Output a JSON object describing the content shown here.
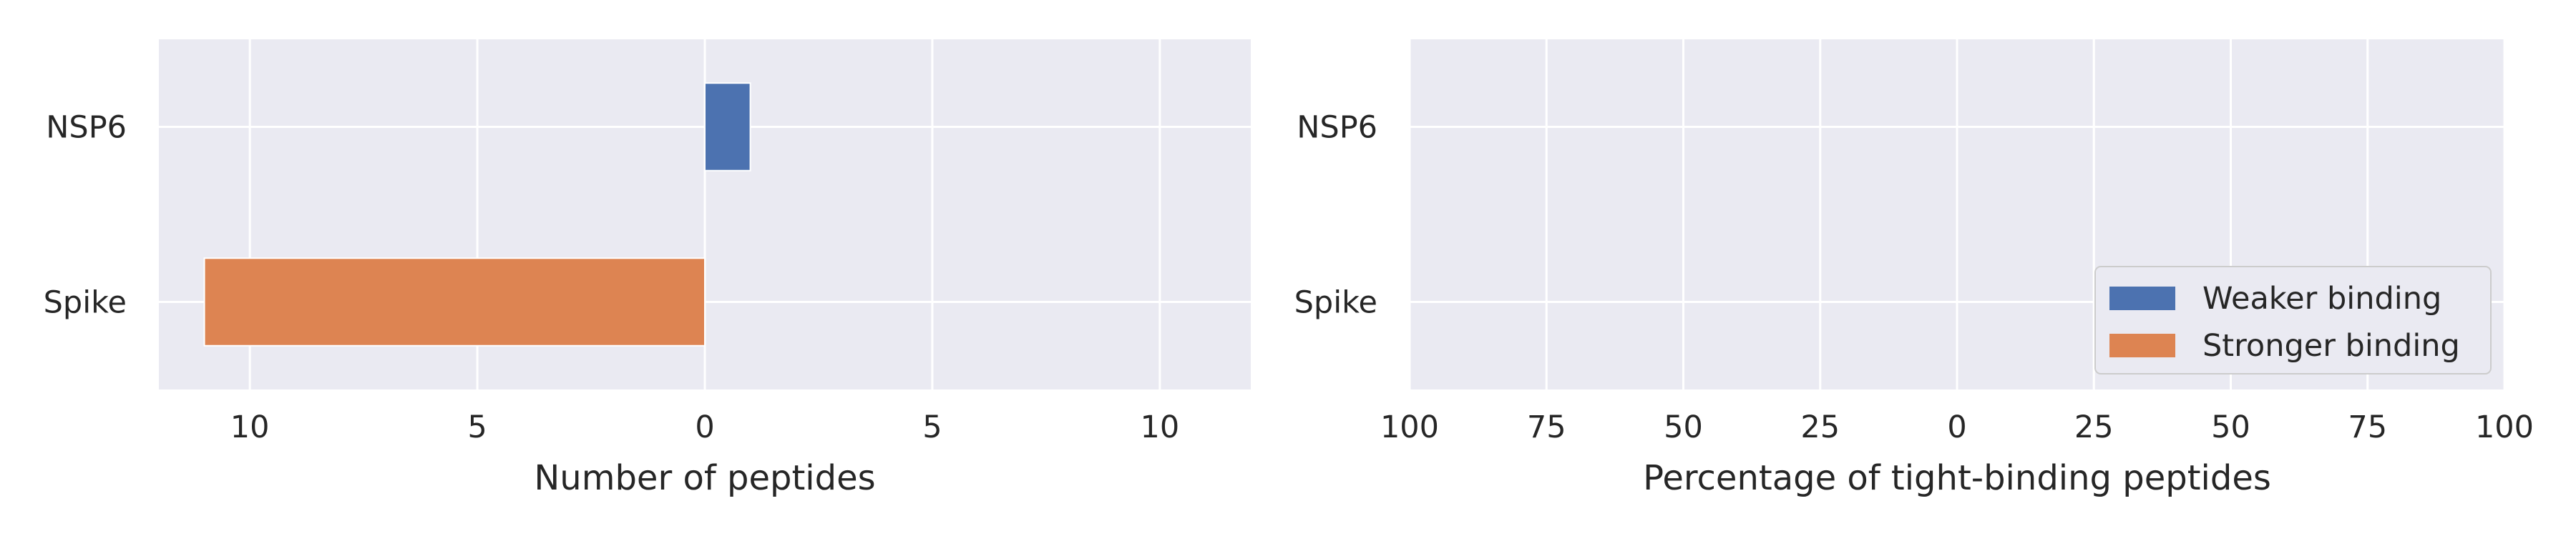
{
  "chart_data": [
    {
      "type": "bar",
      "orientation": "horizontal",
      "diverging": true,
      "categories": [
        "NSP6",
        "Spike"
      ],
      "xlabel": "Number of peptides",
      "ylabel": "",
      "xlim": [
        -12,
        12
      ],
      "xticks": [
        -10,
        -5,
        0,
        5,
        10
      ],
      "xtick_labels": [
        "10",
        "5",
        "0",
        "5",
        "10"
      ],
      "series": [
        {
          "name": "Weaker binding",
          "values": [
            1,
            0
          ],
          "color": "#4c72b0"
        },
        {
          "name": "Stronger binding",
          "values": [
            0,
            -11
          ],
          "color": "#dd8452"
        }
      ],
      "grid": true,
      "legend": false
    },
    {
      "type": "bar",
      "orientation": "horizontal",
      "diverging": true,
      "categories": [
        "NSP6",
        "Spike"
      ],
      "xlabel": "Percentage of tight-binding peptides",
      "ylabel": "",
      "xlim": [
        -100,
        100
      ],
      "xticks": [
        -100,
        -75,
        -50,
        -25,
        0,
        25,
        50,
        75,
        100
      ],
      "xtick_labels": [
        "100",
        "75",
        "50",
        "25",
        "0",
        "25",
        "50",
        "75",
        "100"
      ],
      "series": [
        {
          "name": "Weaker binding",
          "values": [
            0,
            0
          ],
          "color": "#4c72b0"
        },
        {
          "name": "Stronger binding",
          "values": [
            0,
            0
          ],
          "color": "#dd8452"
        }
      ],
      "grid": true,
      "legend": true,
      "legend_position": "lower-right"
    }
  ],
  "style": {
    "plot_bg": "#eaeaf2",
    "grid_color": "#ffffff",
    "text_color": "#262626"
  }
}
